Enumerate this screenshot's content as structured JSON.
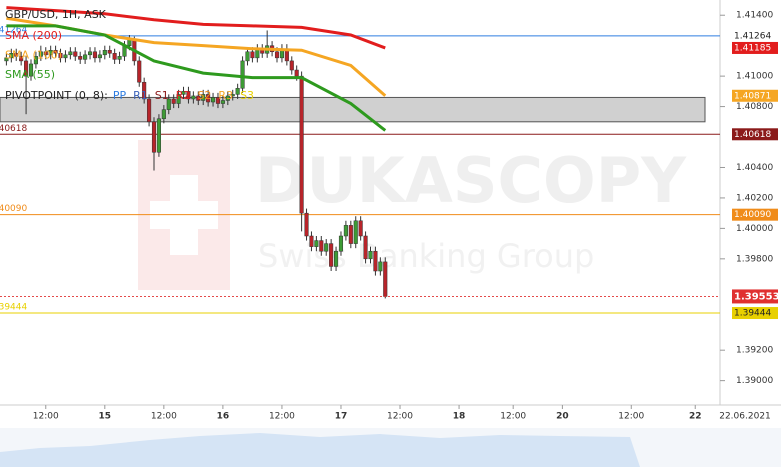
{
  "chart_data": {
    "type": "candlestick",
    "title": "GBP/USD, 1H, ASK",
    "watermark": {
      "brand": "DUKASCOPY",
      "tagline": "Swiss Banking Group"
    },
    "date_label": "22.06.2021",
    "up_color": "#3d9b35",
    "down_color": "#b8242a",
    "x": [
      -20,
      -19,
      -18,
      -17,
      -16,
      -15,
      -14,
      -13,
      -12,
      -11,
      -10,
      -9,
      -8,
      -7,
      -6,
      -5,
      -4,
      -3,
      -2,
      -1,
      0,
      1,
      2,
      3,
      4,
      5,
      6,
      7,
      8,
      9,
      10,
      11,
      12,
      13,
      14,
      15,
      16,
      17,
      18,
      19,
      20,
      21,
      22,
      23,
      24,
      25,
      26,
      27,
      28,
      29,
      30,
      31,
      32,
      33,
      34,
      35,
      36,
      37,
      38,
      39,
      40,
      41,
      42,
      43,
      44,
      45,
      46,
      47,
      48,
      49,
      50,
      51,
      52,
      53,
      54,
      55,
      56,
      57
    ],
    "open": [
      1.411,
      1.4112,
      1.4115,
      1.4113,
      1.411,
      1.41,
      1.4108,
      1.4113,
      1.4116,
      1.4114,
      1.4117,
      1.4115,
      1.4112,
      1.4114,
      1.4116,
      1.4113,
      1.4111,
      1.4114,
      1.4116,
      1.4112,
      1.4114,
      1.4117,
      1.4115,
      1.4111,
      1.4113,
      1.412,
      1.4124,
      1.411,
      1.4096,
      1.4085,
      1.407,
      1.405,
      1.4072,
      1.4078,
      1.4085,
      1.4082,
      1.4088,
      1.409,
      1.4085,
      1.4087,
      1.4084,
      1.4088,
      1.4083,
      1.4086,
      1.4082,
      1.4084,
      1.4087,
      1.4088,
      1.4092,
      1.411,
      1.4116,
      1.4112,
      1.4118,
      1.4115,
      1.412,
      1.4116,
      1.4112,
      1.4118,
      1.411,
      1.4104,
      1.41,
      1.401,
      1.3995,
      1.3988,
      1.3992,
      1.3985,
      1.399,
      1.3975,
      1.3985,
      1.3995,
      1.4002,
      1.399,
      1.4005,
      1.3995,
      1.398,
      1.3985,
      1.3972,
      1.3978
    ],
    "high": [
      1.4115,
      1.4118,
      1.4118,
      1.4116,
      1.4113,
      1.4111,
      1.4116,
      1.412,
      1.4119,
      1.412,
      1.412,
      1.4118,
      1.4117,
      1.4119,
      1.4119,
      1.4116,
      1.4117,
      1.4119,
      1.4119,
      1.4117,
      1.412,
      1.412,
      1.4118,
      1.4116,
      1.4123,
      1.4127,
      1.4126,
      1.4113,
      1.4099,
      1.4088,
      1.4073,
      1.4075,
      1.4081,
      1.4088,
      1.4088,
      1.4091,
      1.4093,
      1.4093,
      1.409,
      1.409,
      1.4091,
      1.4091,
      1.4089,
      1.4089,
      1.4087,
      1.409,
      1.4091,
      1.4095,
      1.4113,
      1.4119,
      1.4119,
      1.4121,
      1.4121,
      1.413,
      1.4123,
      1.4119,
      1.4121,
      1.4121,
      1.4113,
      1.4107,
      1.4103,
      1.4013,
      1.3998,
      1.3995,
      1.3995,
      1.3993,
      1.3993,
      1.3988,
      1.3998,
      1.4005,
      1.4005,
      1.4008,
      1.4008,
      1.3998,
      1.3988,
      1.3988,
      1.3981,
      1.3981
    ],
    "low": [
      1.4107,
      1.4109,
      1.411,
      1.4107,
      1.4075,
      1.4097,
      1.4105,
      1.411,
      1.4111,
      1.4111,
      1.4112,
      1.4109,
      1.4109,
      1.4111,
      1.411,
      1.4108,
      1.4108,
      1.4111,
      1.4109,
      1.4109,
      1.4111,
      1.4112,
      1.4108,
      1.4108,
      1.411,
      1.4117,
      1.4107,
      1.4093,
      1.4082,
      1.4067,
      1.4038,
      1.4047,
      1.4069,
      1.4075,
      1.4079,
      1.4079,
      1.4085,
      1.4082,
      1.4082,
      1.4081,
      1.4081,
      1.408,
      1.408,
      1.4079,
      1.4079,
      1.4081,
      1.4084,
      1.4085,
      1.4089,
      1.4107,
      1.4109,
      1.4109,
      1.4112,
      1.4112,
      1.4113,
      1.4109,
      1.4109,
      1.4107,
      1.4101,
      1.4097,
      1.3998,
      1.3992,
      1.3985,
      1.3985,
      1.3982,
      1.3982,
      1.3972,
      1.3972,
      1.3982,
      1.3992,
      1.3987,
      1.3987,
      1.3992,
      1.3977,
      1.3977,
      1.3969,
      1.3969,
      1.3954
    ],
    "close": [
      1.4112,
      1.4115,
      1.4113,
      1.411,
      1.41,
      1.4108,
      1.4113,
      1.4116,
      1.4114,
      1.4117,
      1.4115,
      1.4112,
      1.4114,
      1.4116,
      1.4113,
      1.4111,
      1.4114,
      1.4116,
      1.4112,
      1.4114,
      1.4117,
      1.4115,
      1.4111,
      1.4113,
      1.412,
      1.4124,
      1.411,
      1.4096,
      1.4085,
      1.407,
      1.405,
      1.4072,
      1.4078,
      1.4085,
      1.4082,
      1.4088,
      1.409,
      1.4085,
      1.4087,
      1.4084,
      1.4088,
      1.4083,
      1.4086,
      1.4082,
      1.4084,
      1.4087,
      1.4088,
      1.4092,
      1.411,
      1.4116,
      1.4112,
      1.4118,
      1.4115,
      1.412,
      1.4116,
      1.4112,
      1.4118,
      1.411,
      1.4104,
      1.41,
      1.401,
      1.3995,
      1.3988,
      1.3992,
      1.3985,
      1.399,
      1.3975,
      1.3985,
      1.3995,
      1.4002,
      1.399,
      1.4005,
      1.3995,
      1.398,
      1.3985,
      1.3972,
      1.3978,
      1.39553
    ],
    "last_color": "#e03030",
    "indicators": [
      {
        "name": "SMA (200)",
        "color": "#e21d1d",
        "x": [
          -20,
          -10,
          0,
          10,
          20,
          30,
          40,
          50,
          57
        ],
        "values": [
          1.4145,
          1.4143,
          1.4141,
          1.4137,
          1.4134,
          1.4133,
          1.4132,
          1.4127,
          1.41185
        ]
      },
      {
        "name": "SMA (100)",
        "color": "#f5a623",
        "x": [
          -20,
          -10,
          0,
          10,
          20,
          30,
          40,
          50,
          57
        ],
        "values": [
          1.4138,
          1.4133,
          1.4127,
          1.4122,
          1.412,
          1.4118,
          1.4117,
          1.4107,
          1.40871
        ]
      },
      {
        "name": "SMA (55)",
        "color": "#2e9a1e",
        "x": [
          -20,
          -10,
          0,
          10,
          20,
          30,
          40,
          50,
          57
        ],
        "values": [
          1.4133,
          1.4133,
          1.4127,
          1.411,
          1.4102,
          1.4099,
          1.4099,
          1.4082,
          1.40643
        ]
      }
    ],
    "pivot": {
      "title": "PIVOTPOINT (0, 8):",
      "zone": [
        1.407,
        1.4086
      ],
      "levels": [
        {
          "name": "PP",
          "color": "#2f7de1",
          "value": 1.41264
        },
        {
          "name": "R1",
          "color": "#3a62b8"
        },
        {
          "name": "S1",
          "color": "#8b1a1a",
          "value": 1.40618
        },
        {
          "name": "R2",
          "color": "#e02020"
        },
        {
          "name": "S2",
          "color": "#f08c1a",
          "value": {
            "value": 1.4009,
            "label": "1.40090"
          }
        },
        {
          "name": "R3",
          "color": "#f5a623"
        },
        {
          "name": "S3",
          "color": "#e8d000",
          "value": 1.39444
        }
      ]
    },
    "ylim": [
      1.3884,
      1.415
    ],
    "yticks": [
      {
        "value": 1.414,
        "label": "1.41400"
      },
      {
        "value": 1.41,
        "label": "1.41000"
      },
      {
        "value": 1.408,
        "label": "1.40800"
      },
      {
        "value": 1.404,
        "label": "1.40400"
      },
      {
        "value": 1.402,
        "label": "1.40200"
      },
      {
        "value": 1.4,
        "label": "1.40000"
      },
      {
        "value": 1.398,
        "label": "1.39800"
      },
      {
        "value": 1.392,
        "label": "1.39200"
      },
      {
        "value": 1.39,
        "label": "1.39000"
      }
    ],
    "xlim": [
      -21.3,
      123
    ],
    "xticks": [
      {
        "value": -12,
        "label": "12:00"
      },
      {
        "value": 0,
        "label": "15"
      },
      {
        "value": 12,
        "label": "12:00"
      },
      {
        "value": 24,
        "label": "16"
      },
      {
        "value": 36,
        "label": "12:00"
      },
      {
        "value": 48,
        "label": "17"
      },
      {
        "value": 60,
        "label": "12:00"
      },
      {
        "value": 72,
        "label": "18"
      },
      {
        "value": 83,
        "label": "12:00"
      },
      {
        "value": 93,
        "label": "20"
      },
      {
        "value": 107,
        "label": "12:00"
      },
      {
        "value": 120,
        "label": "22"
      }
    ]
  }
}
